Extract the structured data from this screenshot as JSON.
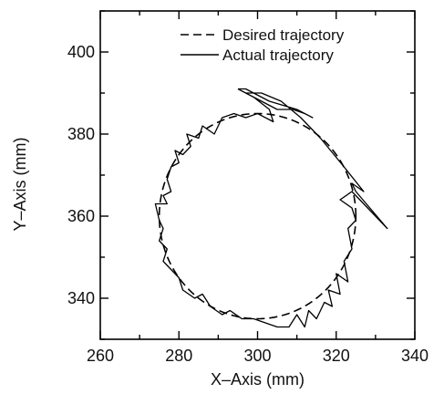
{
  "chart_data": {
    "type": "line",
    "xlabel": "X–Axis (mm)",
    "ylabel": "Y–Axis (mm)",
    "xlim": [
      260,
      340
    ],
    "ylim": [
      330,
      410
    ],
    "xticks": [
      260,
      280,
      300,
      320,
      340
    ],
    "yticks": [
      340,
      360,
      380,
      400
    ],
    "grid": false,
    "legend_position": "top-right",
    "series": [
      {
        "name": "Desired trajectory",
        "style": "dashed",
        "shape": "circle",
        "center": [
          300,
          360
        ],
        "radius": 25
      },
      {
        "name": "Actual trajectory",
        "style": "solid",
        "points": [
          [
            295,
            391
          ],
          [
            299,
            389
          ],
          [
            303,
            386
          ],
          [
            304,
            383
          ],
          [
            300,
            385
          ],
          [
            297,
            384
          ],
          [
            294,
            385
          ],
          [
            291,
            384
          ],
          [
            289,
            380
          ],
          [
            286,
            382
          ],
          [
            285,
            379
          ],
          [
            282,
            380
          ],
          [
            283,
            377
          ],
          [
            281,
            375
          ],
          [
            279,
            376
          ],
          [
            280,
            373
          ],
          [
            278,
            372
          ],
          [
            277,
            369
          ],
          [
            278,
            366
          ],
          [
            276,
            365
          ],
          [
            277,
            363
          ],
          [
            274,
            363
          ],
          [
            275,
            359
          ],
          [
            276,
            357
          ],
          [
            275,
            354
          ],
          [
            277,
            352
          ],
          [
            276,
            349
          ],
          [
            278,
            347
          ],
          [
            280,
            345
          ],
          [
            281,
            342
          ],
          [
            284,
            340
          ],
          [
            286,
            341
          ],
          [
            288,
            338
          ],
          [
            291,
            336
          ],
          [
            293,
            337
          ],
          [
            296,
            335
          ],
          [
            299,
            335
          ],
          [
            302,
            334
          ],
          [
            305,
            333
          ],
          [
            308,
            333
          ],
          [
            310,
            336
          ],
          [
            312,
            333
          ],
          [
            313,
            337
          ],
          [
            315,
            335
          ],
          [
            317,
            339
          ],
          [
            319,
            338
          ],
          [
            318,
            342
          ],
          [
            321,
            341
          ],
          [
            320,
            346
          ],
          [
            323,
            344
          ],
          [
            322,
            349
          ],
          [
            324,
            352
          ],
          [
            323,
            357
          ],
          [
            325,
            359
          ],
          [
            324,
            362
          ],
          [
            321,
            364
          ],
          [
            324,
            366
          ],
          [
            333,
            357
          ],
          [
            325,
            366
          ],
          [
            324,
            368
          ],
          [
            327,
            366
          ],
          [
            322,
            372
          ],
          [
            316,
            379
          ],
          [
            311,
            384
          ],
          [
            306,
            388
          ],
          [
            301,
            390
          ],
          [
            297,
            390
          ],
          [
            305,
            386
          ],
          [
            309,
            386
          ],
          [
            312,
            385
          ],
          [
            314,
            384
          ],
          [
            310,
            386
          ],
          [
            303,
            388
          ],
          [
            297,
            391
          ],
          [
            295,
            391
          ]
        ]
      }
    ]
  }
}
